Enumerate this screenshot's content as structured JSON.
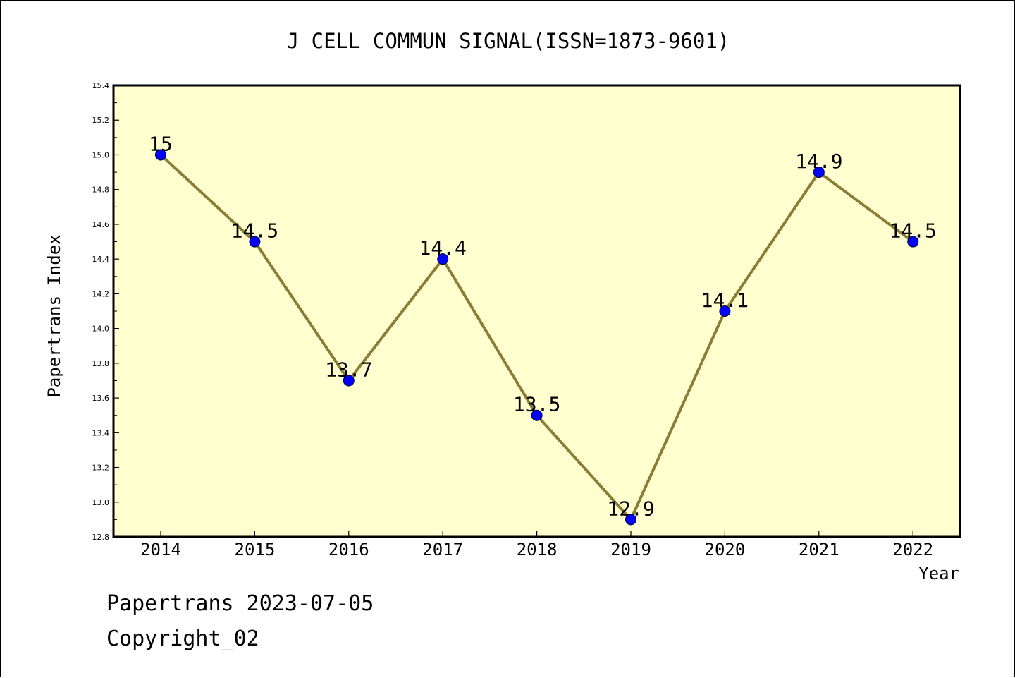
{
  "footer": {
    "line1": "Papertrans 2023-07-05",
    "line2": "Copyright_02"
  },
  "chart_data": {
    "type": "line",
    "title": "J CELL COMMUN SIGNAL(ISSN=1873-9601)",
    "xlabel": "Year",
    "ylabel": "Papertrans Index",
    "categories": [
      "2014",
      "2015",
      "2016",
      "2017",
      "2018",
      "2019",
      "2020",
      "2021",
      "2022"
    ],
    "values": [
      15,
      14.5,
      13.7,
      14.4,
      13.5,
      12.9,
      14.1,
      14.9,
      14.5
    ],
    "data_labels": [
      "15",
      "14.5",
      "13.7",
      "14.4",
      "13.5",
      "12.9",
      "14.1",
      "14.9",
      "14.5"
    ],
    "ylim": [
      12.8,
      15.4
    ],
    "yticks": [
      12.8,
      13.0,
      13.2,
      13.4,
      13.6,
      13.8,
      14.0,
      14.2,
      14.4,
      14.6,
      14.8,
      15.0,
      15.2,
      15.4
    ],
    "grid": false,
    "colors": {
      "plot_background": "#ffffd0",
      "line": "#8b7d35",
      "marker": "#0000ff",
      "axes": "#000000"
    }
  }
}
